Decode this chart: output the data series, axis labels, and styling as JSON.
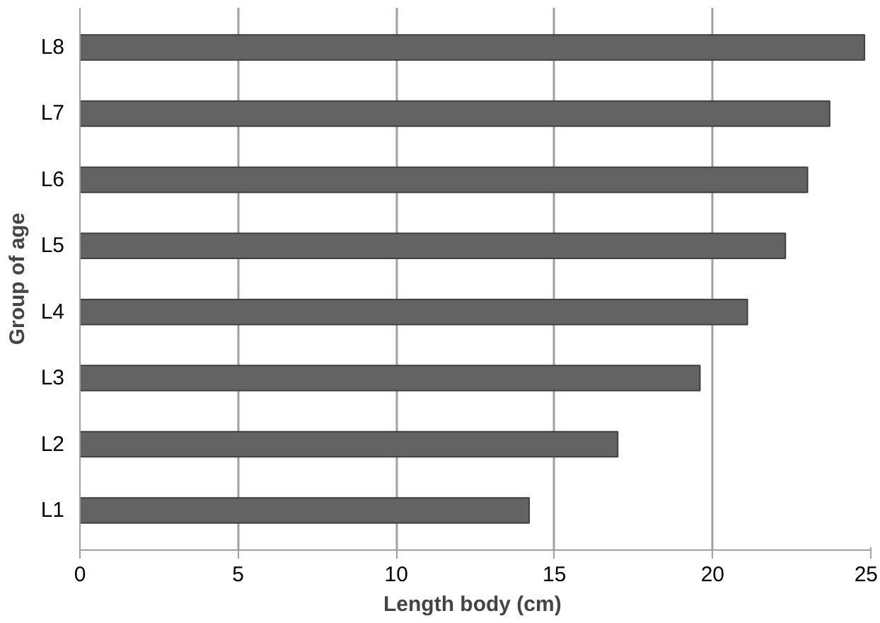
{
  "chart_data": {
    "type": "bar",
    "orientation": "horizontal",
    "xlabel": "Length  body (cm)",
    "ylabel": "Group of age",
    "categories": [
      "L8",
      "L7",
      "L6",
      "L5",
      "L4",
      "L3",
      "L2",
      "L1"
    ],
    "values": [
      24.8,
      23.7,
      23.0,
      22.3,
      21.1,
      19.6,
      17.0,
      14.2
    ],
    "color": "#636363",
    "xlim": [
      0,
      25
    ],
    "xticks": [
      0,
      5,
      10,
      15,
      20,
      25
    ],
    "grid": "x"
  }
}
